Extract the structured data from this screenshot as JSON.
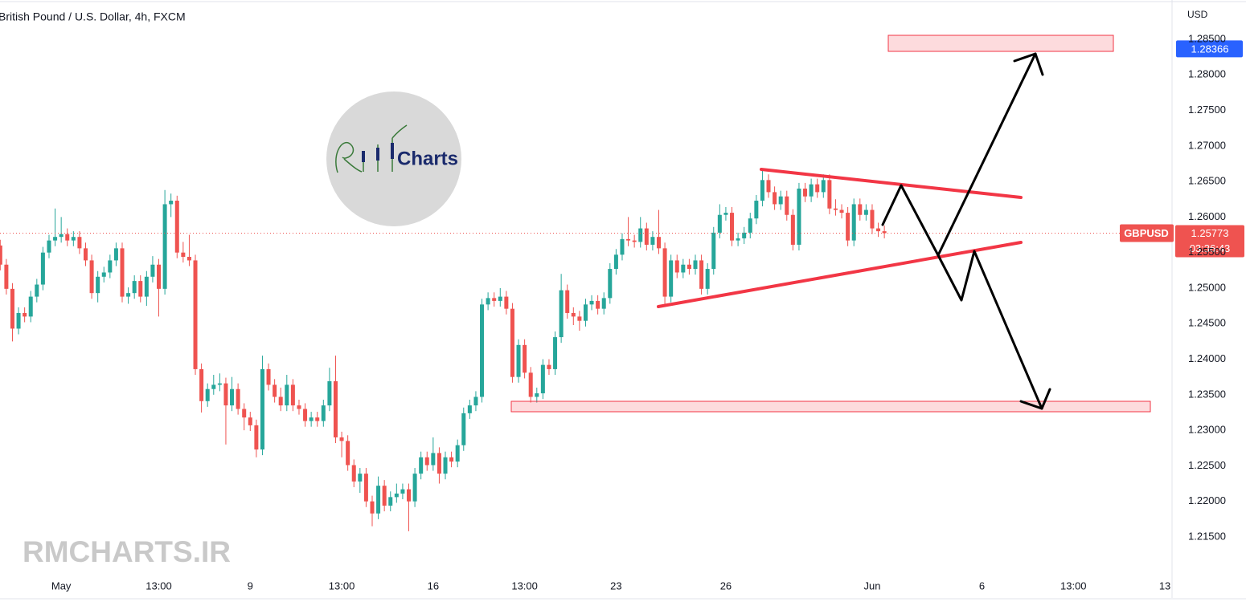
{
  "chart_data": {
    "type": "candlestick",
    "title": "British Pound / U.S. Dollar, 4h, FXCM",
    "y_axis_label": "USD",
    "symbol": "GBPUSD",
    "countdown": "03:36:43",
    "marked_price": {
      "value": 1.28366,
      "label": "1.28366"
    },
    "watermark": "RMCHARTS.IR",
    "logo_text": "Charts",
    "up_color": "#26a69a",
    "down_color": "#ef5350",
    "marked_price_color": "#2962ff",
    "grid": false,
    "xlim": [
      -0.04,
      192.18
    ],
    "ylim": [
      1.21014,
      1.29053
    ],
    "xticks": [
      {
        "value": 10,
        "label": "May"
      },
      {
        "value": 26,
        "label": "13:00"
      },
      {
        "value": 41,
        "label": "9"
      },
      {
        "value": 56,
        "label": "13:00"
      },
      {
        "value": 71,
        "label": "16"
      },
      {
        "value": 86,
        "label": "13:00"
      },
      {
        "value": 101,
        "label": "23"
      },
      {
        "value": 119,
        "label": "26"
      },
      {
        "value": 143,
        "label": "Jun"
      },
      {
        "value": 161,
        "label": "6"
      },
      {
        "value": 176,
        "label": "13:00"
      },
      {
        "value": 191,
        "label": "13"
      }
    ],
    "yticks": [
      {
        "value": 1.215,
        "label": "1.21500"
      },
      {
        "value": 1.22,
        "label": "1.22000"
      },
      {
        "value": 1.225,
        "label": "1.22500"
      },
      {
        "value": 1.23,
        "label": "1.23000"
      },
      {
        "value": 1.235,
        "label": "1.23500"
      },
      {
        "value": 1.24,
        "label": "1.24000"
      },
      {
        "value": 1.245,
        "label": "1.24500"
      },
      {
        "value": 1.25,
        "label": "1.25000"
      },
      {
        "value": 1.255,
        "label": "1.25500"
      },
      {
        "value": 1.26,
        "label": "1.26000"
      },
      {
        "value": 1.265,
        "label": "1.26500"
      },
      {
        "value": 1.27,
        "label": "1.27000"
      },
      {
        "value": 1.275,
        "label": "1.27500"
      },
      {
        "value": 1.28,
        "label": "1.28000"
      },
      {
        "value": 1.285,
        "label": "1.28500"
      }
    ],
    "ohlc": [
      [
        1.256,
        1.2568,
        1.2525,
        1.2533
      ],
      [
        1.2533,
        1.2541,
        1.2491,
        1.2499
      ],
      [
        1.2499,
        1.2507,
        1.2425,
        1.2443
      ],
      [
        1.2443,
        1.2473,
        1.2435,
        1.2465
      ],
      [
        1.2465,
        1.2473,
        1.2452,
        1.246
      ],
      [
        1.246,
        1.2496,
        1.2452,
        1.2488
      ],
      [
        1.2488,
        1.2513,
        1.248,
        1.2505
      ],
      [
        1.2505,
        1.2558,
        1.2497,
        1.255
      ],
      [
        1.255,
        1.2575,
        1.2542,
        1.2567
      ],
      [
        1.2567,
        1.2612,
        1.2559,
        1.2572
      ],
      [
        1.2572,
        1.26,
        1.2564,
        1.2576
      ],
      [
        1.2576,
        1.2584,
        1.2559,
        1.2567
      ],
      [
        1.2567,
        1.258,
        1.2559,
        1.2572
      ],
      [
        1.2572,
        1.258,
        1.2548,
        1.2556
      ],
      [
        1.2556,
        1.2564,
        1.2531,
        1.2539
      ],
      [
        1.2539,
        1.2547,
        1.2485,
        1.2493
      ],
      [
        1.2493,
        1.2524,
        1.248,
        1.2516
      ],
      [
        1.2516,
        1.253,
        1.2508,
        1.2522
      ],
      [
        1.2522,
        1.2547,
        1.2514,
        1.2539
      ],
      [
        1.2539,
        1.2564,
        1.2531,
        1.2556
      ],
      [
        1.2556,
        1.2564,
        1.248,
        1.2488
      ],
      [
        1.2488,
        1.2501,
        1.2478,
        1.2493
      ],
      [
        1.2493,
        1.2518,
        1.2485,
        1.251
      ],
      [
        1.251,
        1.2518,
        1.248,
        1.2488
      ],
      [
        1.2488,
        1.2524,
        1.2475,
        1.2516
      ],
      [
        1.2516,
        1.2545,
        1.2508,
        1.2533
      ],
      [
        1.2533,
        1.2541,
        1.246,
        1.2499
      ],
      [
        1.2499,
        1.2638,
        1.2491,
        1.2618
      ],
      [
        1.2618,
        1.2633,
        1.26,
        1.2623
      ],
      [
        1.2623,
        1.263,
        1.2542,
        1.255
      ],
      [
        1.255,
        1.2565,
        1.2536,
        1.2544
      ],
      [
        1.2544,
        1.2575,
        1.2531,
        1.2539
      ],
      [
        1.2539,
        1.2547,
        1.2378,
        1.2386
      ],
      [
        1.2386,
        1.2394,
        1.2325,
        1.2341
      ],
      [
        1.2341,
        1.2366,
        1.2333,
        1.2358
      ],
      [
        1.2358,
        1.2378,
        1.235,
        1.2364
      ],
      [
        1.2364,
        1.238,
        1.2355,
        1.2366
      ],
      [
        1.2366,
        1.2374,
        1.228,
        1.2335
      ],
      [
        1.2335,
        1.2375,
        1.2327,
        1.2358
      ],
      [
        1.2358,
        1.2366,
        1.2322,
        1.233
      ],
      [
        1.233,
        1.2338,
        1.23,
        1.2318
      ],
      [
        1.2318,
        1.2326,
        1.2299,
        1.2307
      ],
      [
        1.2307,
        1.2315,
        1.2262,
        1.2273
      ],
      [
        1.2273,
        1.2405,
        1.2265,
        1.2386
      ],
      [
        1.2386,
        1.2394,
        1.2356,
        1.2364
      ],
      [
        1.2364,
        1.2372,
        1.2339,
        1.2347
      ],
      [
        1.2347,
        1.236,
        1.2327,
        1.2335
      ],
      [
        1.2335,
        1.2378,
        1.2327,
        1.2364
      ],
      [
        1.2364,
        1.2372,
        1.2327,
        1.2335
      ],
      [
        1.2335,
        1.2343,
        1.2322,
        1.233
      ],
      [
        1.233,
        1.2338,
        1.2305,
        1.2313
      ],
      [
        1.2313,
        1.2326,
        1.2305,
        1.2318
      ],
      [
        1.2318,
        1.2326,
        1.2305,
        1.2313
      ],
      [
        1.2313,
        1.2343,
        1.2305,
        1.2335
      ],
      [
        1.2335,
        1.2388,
        1.2327,
        1.2369
      ],
      [
        1.2369,
        1.2405,
        1.2282,
        1.229
      ],
      [
        1.229,
        1.2298,
        1.2262,
        1.2285
      ],
      [
        1.2285,
        1.2293,
        1.2243,
        1.2251
      ],
      [
        1.2251,
        1.2259,
        1.222,
        1.2228
      ],
      [
        1.2228,
        1.2247,
        1.2212,
        1.2239
      ],
      [
        1.2239,
        1.2247,
        1.2192,
        1.22
      ],
      [
        1.22,
        1.2208,
        1.2165,
        1.2183
      ],
      [
        1.2183,
        1.2235,
        1.2175,
        1.2222
      ],
      [
        1.2222,
        1.223,
        1.2186,
        1.2194
      ],
      [
        1.2194,
        1.2214,
        1.2186,
        1.2206
      ],
      [
        1.2206,
        1.2225,
        1.2198,
        1.2211
      ],
      [
        1.2211,
        1.2225,
        1.2203,
        1.2217
      ],
      [
        1.2217,
        1.2225,
        1.2158,
        1.22
      ],
      [
        1.22,
        1.2247,
        1.2192,
        1.2239
      ],
      [
        1.2239,
        1.227,
        1.2231,
        1.2262
      ],
      [
        1.2262,
        1.227,
        1.2243,
        1.2251
      ],
      [
        1.2251,
        1.229,
        1.2243,
        1.2268
      ],
      [
        1.2268,
        1.2276,
        1.2225,
        1.2239
      ],
      [
        1.2239,
        1.227,
        1.2231,
        1.2262
      ],
      [
        1.2262,
        1.227,
        1.2248,
        1.2256
      ],
      [
        1.2256,
        1.2287,
        1.2248,
        1.2279
      ],
      [
        1.2279,
        1.2332,
        1.2271,
        1.2324
      ],
      [
        1.2324,
        1.2343,
        1.2316,
        1.2335
      ],
      [
        1.2335,
        1.2355,
        1.2327,
        1.2347
      ],
      [
        1.2347,
        1.2485,
        1.2339,
        1.2477
      ],
      [
        1.2477,
        1.2494,
        1.2469,
        1.2486
      ],
      [
        1.2486,
        1.2494,
        1.2474,
        1.2482
      ],
      [
        1.2482,
        1.25,
        1.2474,
        1.2488
      ],
      [
        1.2488,
        1.2496,
        1.2463,
        1.2471
      ],
      [
        1.2471,
        1.2479,
        1.2367,
        1.2375
      ],
      [
        1.2375,
        1.2428,
        1.2367,
        1.242
      ],
      [
        1.242,
        1.2428,
        1.2373,
        1.2381
      ],
      [
        1.2381,
        1.2389,
        1.2339,
        1.2347
      ],
      [
        1.2347,
        1.236,
        1.2339,
        1.2352
      ],
      [
        1.2352,
        1.24,
        1.2344,
        1.2392
      ],
      [
        1.2392,
        1.24,
        1.2378,
        1.2386
      ],
      [
        1.2386,
        1.2439,
        1.2378,
        1.2431
      ],
      [
        1.2431,
        1.252,
        1.2423,
        1.2497
      ],
      [
        1.2497,
        1.2505,
        1.2457,
        1.2465
      ],
      [
        1.2465,
        1.2473,
        1.2448,
        1.246
      ],
      [
        1.246,
        1.2468,
        1.244,
        1.2454
      ],
      [
        1.2454,
        1.2485,
        1.2446,
        1.2477
      ],
      [
        1.2477,
        1.249,
        1.2469,
        1.2482
      ],
      [
        1.2482,
        1.249,
        1.2463,
        1.2471
      ],
      [
        1.2471,
        1.2494,
        1.2463,
        1.2486
      ],
      [
        1.2486,
        1.2535,
        1.2478,
        1.2527
      ],
      [
        1.2527,
        1.2555,
        1.2519,
        1.2547
      ],
      [
        1.2547,
        1.2577,
        1.2539,
        1.2569
      ],
      [
        1.2569,
        1.26,
        1.2559,
        1.2567
      ],
      [
        1.2567,
        1.2575,
        1.2557,
        1.2565
      ],
      [
        1.2565,
        1.26,
        1.2557,
        1.2584
      ],
      [
        1.2584,
        1.2592,
        1.2553,
        1.2561
      ],
      [
        1.2561,
        1.258,
        1.2553,
        1.2572
      ],
      [
        1.2572,
        1.261,
        1.2548,
        1.2556
      ],
      [
        1.2556,
        1.2564,
        1.2478,
        1.2488
      ],
      [
        1.2488,
        1.2547,
        1.248,
        1.2539
      ],
      [
        1.2539,
        1.2547,
        1.2514,
        1.2522
      ],
      [
        1.2522,
        1.2541,
        1.2514,
        1.2533
      ],
      [
        1.2533,
        1.2541,
        1.2519,
        1.2527
      ],
      [
        1.2527,
        1.2547,
        1.2519,
        1.2539
      ],
      [
        1.2539,
        1.2547,
        1.2491,
        1.2499
      ],
      [
        1.2499,
        1.2535,
        1.2491,
        1.2527
      ],
      [
        1.2527,
        1.2586,
        1.2519,
        1.2578
      ],
      [
        1.2578,
        1.2618,
        1.257,
        1.2603
      ],
      [
        1.2603,
        1.2614,
        1.2595,
        1.2606
      ],
      [
        1.2606,
        1.2614,
        1.2559,
        1.2567
      ],
      [
        1.2567,
        1.2578,
        1.2559,
        1.257
      ],
      [
        1.257,
        1.2586,
        1.2562,
        1.2578
      ],
      [
        1.2578,
        1.2606,
        1.257,
        1.2598
      ],
      [
        1.2598,
        1.2631,
        1.259,
        1.2623
      ],
      [
        1.2623,
        1.2665,
        1.2615,
        1.2652
      ],
      [
        1.2652,
        1.266,
        1.2627,
        1.2635
      ],
      [
        1.2635,
        1.2643,
        1.261,
        1.2618
      ],
      [
        1.2618,
        1.2637,
        1.261,
        1.2629
      ],
      [
        1.2629,
        1.2637,
        1.2595,
        1.2603
      ],
      [
        1.2603,
        1.2611,
        1.2553,
        1.2561
      ],
      [
        1.2561,
        1.2648,
        1.2553,
        1.264
      ],
      [
        1.264,
        1.2648,
        1.2621,
        1.2629
      ],
      [
        1.2629,
        1.2654,
        1.2621,
        1.2646
      ],
      [
        1.2646,
        1.2654,
        1.2627,
        1.2635
      ],
      [
        1.2635,
        1.266,
        1.2627,
        1.2652
      ],
      [
        1.2652,
        1.266,
        1.2604,
        1.2612
      ],
      [
        1.2612,
        1.2625,
        1.2602,
        1.261
      ],
      [
        1.261,
        1.2618,
        1.2598,
        1.2606
      ],
      [
        1.2606,
        1.2614,
        1.2559,
        1.2567
      ],
      [
        1.2567,
        1.2626,
        1.2559,
        1.2618
      ],
      [
        1.2618,
        1.2626,
        1.2595,
        1.2603
      ],
      [
        1.2603,
        1.2618,
        1.2595,
        1.261
      ],
      [
        1.261,
        1.2618,
        1.2576,
        1.2584
      ],
      [
        1.2584,
        1.2592,
        1.2572,
        1.258
      ],
      [
        1.258,
        1.2588,
        1.257,
        1.25773
      ]
    ]
  }
}
